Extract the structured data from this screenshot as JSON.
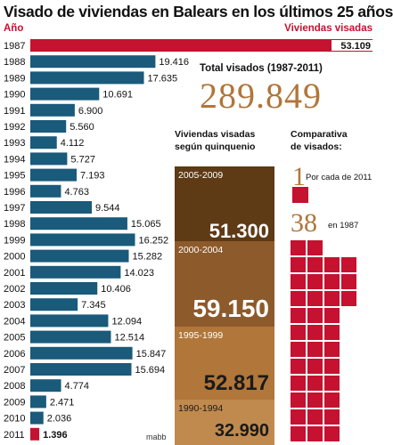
{
  "title": "Visado de viviendas en Balears en los últimos 25 años",
  "header": {
    "left": "Año",
    "right": "Viviendas visadas"
  },
  "colors": {
    "highlight": "#c41230",
    "bar": "#1a5a7a",
    "accent_brown": "#b0763a"
  },
  "chart_data": {
    "type": "bar",
    "orientation": "horizontal",
    "categories": [
      "1987",
      "1988",
      "1989",
      "1990",
      "1991",
      "1992",
      "1993",
      "1994",
      "1995",
      "1996",
      "1997",
      "1998",
      "1999",
      "2000",
      "2001",
      "2002",
      "2003",
      "2004",
      "2005",
      "2006",
      "2007",
      "2008",
      "2009",
      "2010",
      "2011"
    ],
    "values": [
      53109,
      19416,
      17635,
      10691,
      6900,
      5560,
      4112,
      5727,
      7193,
      4763,
      9544,
      15065,
      16252,
      15282,
      14023,
      10406,
      7345,
      12094,
      12514,
      15847,
      15694,
      4774,
      2471,
      2036,
      1396
    ],
    "labels": [
      "53.109",
      "19.416",
      "17.635",
      "10.691",
      "6.900",
      "5.560",
      "4.112",
      "5.727",
      "7.193",
      "4.763",
      "9.544",
      "15.065",
      "16.252",
      "15.282",
      "14.023",
      "10.406",
      "7.345",
      "12.094",
      "12.514",
      "15.847",
      "15.694",
      "4.774",
      "2.471",
      "2.036",
      "1.396"
    ],
    "highlight": [
      "1987",
      "2011"
    ]
  },
  "total": {
    "label": "Total visados (1987-2011)",
    "value": "289.849"
  },
  "quinquenio": {
    "title_line1": "Viviendas visadas",
    "title_line2": "según quinquenio",
    "blocks": [
      {
        "range": "2005-2009",
        "value": "51.300",
        "color": "#5e3a15"
      },
      {
        "range": "2000-2004",
        "value": "59.150",
        "color": "#8c5a2b"
      },
      {
        "range": "1995-1999",
        "value": "52.817",
        "color": "#b0763a"
      },
      {
        "range": "1990-1994",
        "value": "32.990",
        "color": "#c08a4e"
      }
    ]
  },
  "comparativa": {
    "title_line1": "Comparativa",
    "title_line2": "de visados:",
    "one_number": "1",
    "one_text": "Por cada de 2011",
    "big_number": "38",
    "big_text": "en 1987"
  },
  "credit": "mabb"
}
